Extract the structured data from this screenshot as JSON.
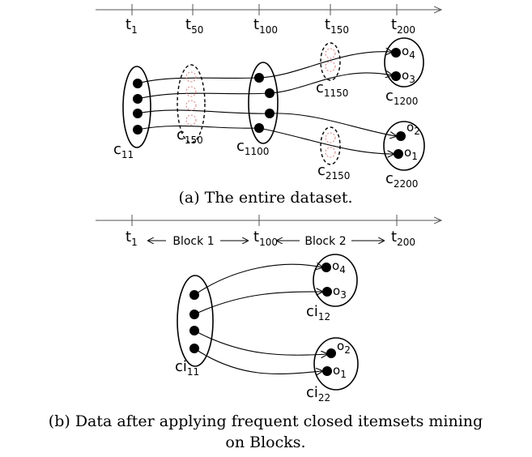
{
  "panel_a": {
    "timeline": [
      {
        "base": "t",
        "sub": "1"
      },
      {
        "base": "t",
        "sub": "50"
      },
      {
        "base": "t",
        "sub": "100"
      },
      {
        "base": "t",
        "sub": "150"
      },
      {
        "base": "t",
        "sub": "200"
      }
    ],
    "clusters": [
      {
        "base": "c",
        "sub": "11"
      },
      {
        "base": "c",
        "sub": "150"
      },
      {
        "base": "c",
        "sub": "1100"
      },
      {
        "base": "c",
        "sub": "1150"
      },
      {
        "base": "c",
        "sub": "1200"
      },
      {
        "base": "c",
        "sub": "2150"
      },
      {
        "base": "c",
        "sub": "2200"
      }
    ],
    "objects": [
      {
        "base": "o",
        "sub": "4"
      },
      {
        "base": "o",
        "sub": "3"
      },
      {
        "base": "o",
        "sub": "2"
      },
      {
        "base": "o",
        "sub": "1"
      }
    ],
    "caption": "(a) The entire dataset."
  },
  "panel_b": {
    "timeline": [
      {
        "base": "t",
        "sub": "1"
      },
      {
        "base": "t",
        "sub": "100"
      },
      {
        "base": "t",
        "sub": "200"
      }
    ],
    "blocks": [
      "Block 1",
      "Block 2"
    ],
    "clusters": [
      {
        "base": "ci",
        "sub": "11"
      },
      {
        "base": "ci",
        "sub": "12"
      },
      {
        "base": "ci",
        "sub": "22"
      }
    ],
    "objects": [
      {
        "base": "o",
        "sub": "4"
      },
      {
        "base": "o",
        "sub": "3"
      },
      {
        "base": "o",
        "sub": "2"
      },
      {
        "base": "o",
        "sub": "1"
      }
    ],
    "caption": [
      "(b) Data after applying frequent closed itemsets mining",
      "on Blocks."
    ]
  }
}
